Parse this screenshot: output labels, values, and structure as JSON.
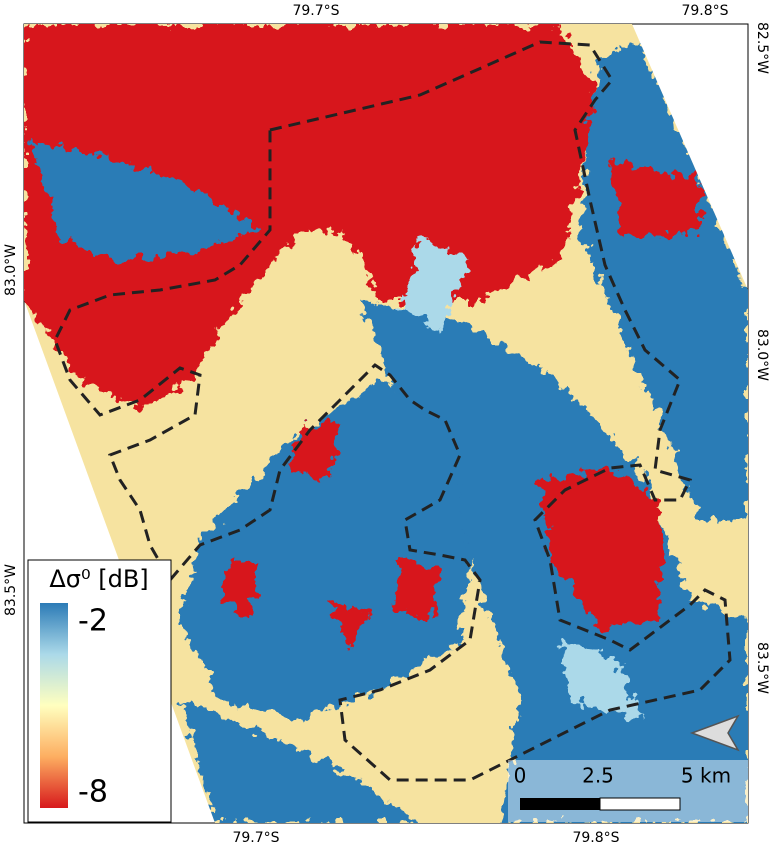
{
  "axes": {
    "top": [
      "79.7°S",
      "79.8°S"
    ],
    "bottom": [
      "79.7°S",
      "79.8°S"
    ],
    "right": [
      "82.5°W",
      "83.0°W",
      "83.5°W"
    ],
    "left": [
      "83.0°W",
      "83.5°W"
    ]
  },
  "legend": {
    "title": "Δσ⁰ [dB]",
    "max": -2,
    "min": -8
  },
  "scale_bar": {
    "labels": [
      "0",
      "2.5",
      "5 km"
    ]
  }
}
